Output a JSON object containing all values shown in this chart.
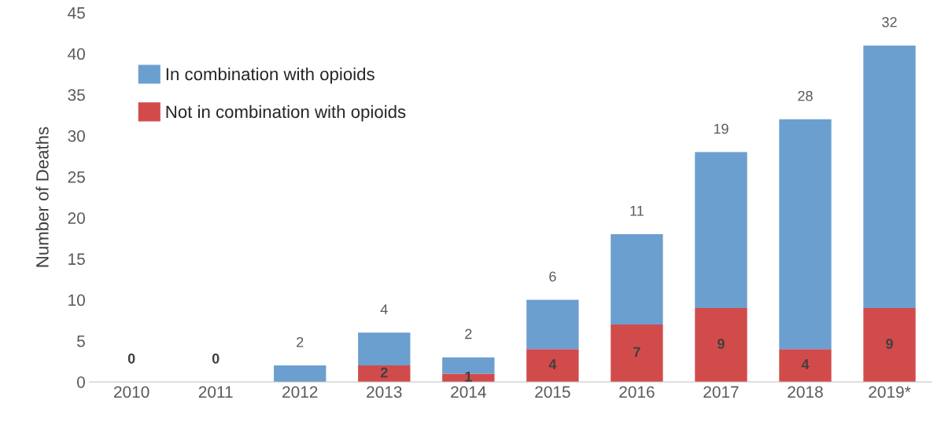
{
  "chart_data": {
    "type": "bar",
    "stacked": true,
    "ylabel": "Number of Deaths",
    "categories": [
      "2010",
      "2011",
      "2012",
      "2013",
      "2014",
      "2015",
      "2016",
      "2017",
      "2018",
      "2019*"
    ],
    "series": [
      {
        "name": "Not in combination with opioids",
        "color": "#d24b4b",
        "values": [
          0,
          0,
          0,
          2,
          1,
          4,
          7,
          9,
          4,
          9
        ],
        "value_labels": [
          "0",
          "0",
          null,
          "2",
          "1",
          "4",
          "7",
          "9",
          "4",
          "9"
        ]
      },
      {
        "name": "In combination with opioids",
        "color": "#6b9fcf",
        "values": [
          0,
          0,
          2,
          4,
          2,
          6,
          11,
          19,
          28,
          32
        ],
        "value_labels": [
          null,
          null,
          "2",
          "4",
          "2",
          "6",
          "11",
          "19",
          "28",
          "32"
        ]
      }
    ],
    "ylim": [
      0,
      45
    ],
    "yticks": [
      0,
      5,
      10,
      15,
      20,
      25,
      30,
      35,
      40,
      45
    ],
    "grid": false,
    "legend": "top left"
  }
}
